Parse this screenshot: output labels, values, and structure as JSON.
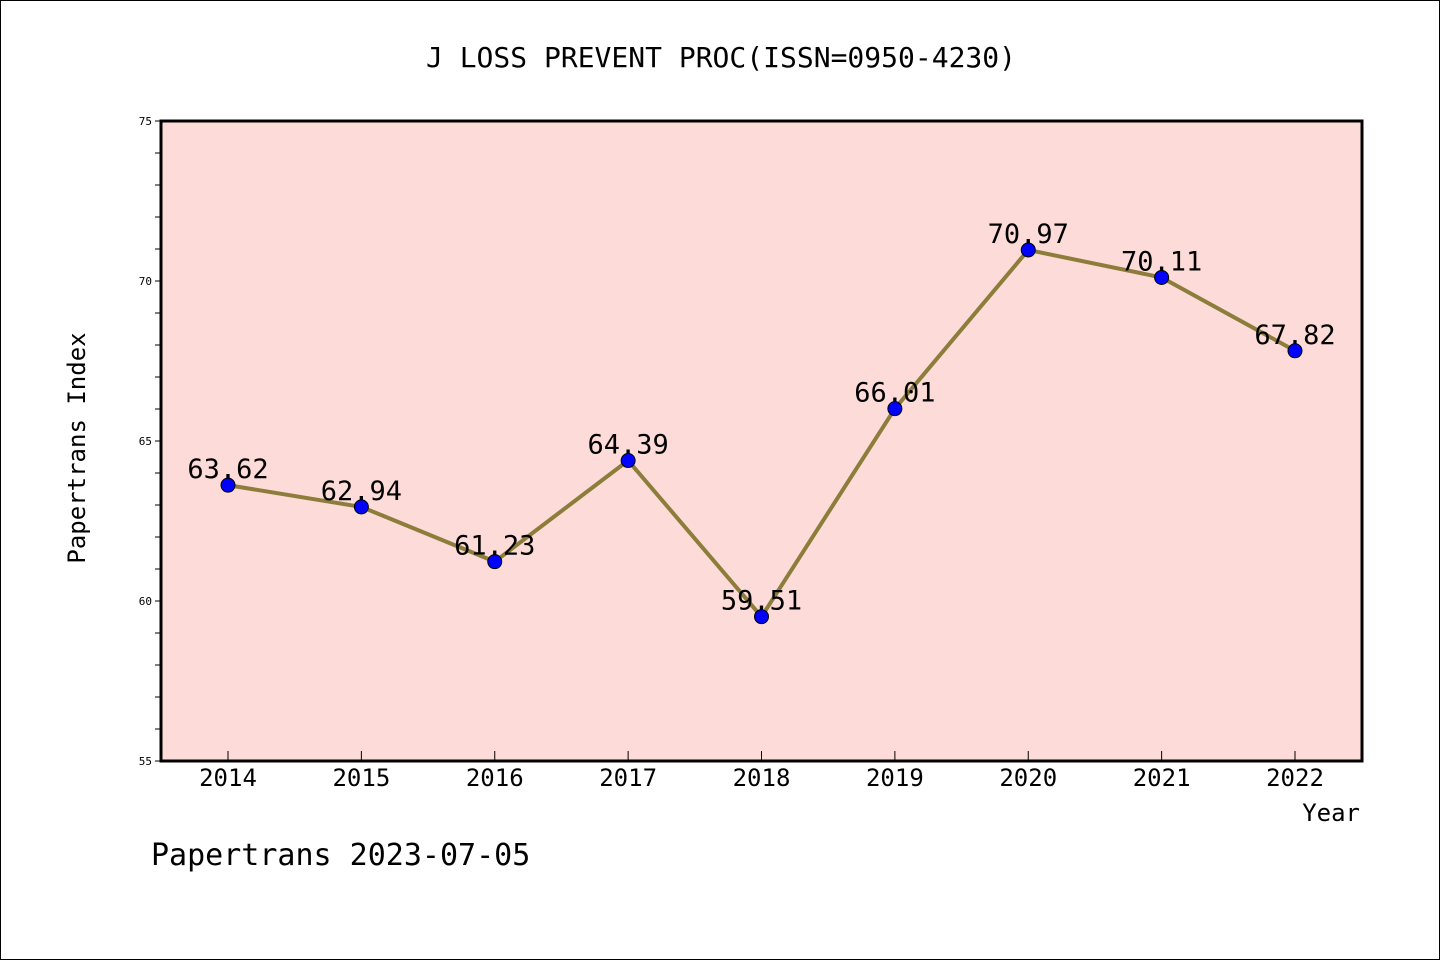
{
  "chart_data": {
    "type": "line",
    "title": "J LOSS PREVENT PROC(ISSN=0950-4230)",
    "xlabel": "Year",
    "ylabel": "Papertrans Index",
    "categories": [
      "2014",
      "2015",
      "2016",
      "2017",
      "2018",
      "2019",
      "2020",
      "2021",
      "2022"
    ],
    "series": [
      {
        "values": [
          63.62,
          62.94,
          61.23,
          64.39,
          59.51,
          66.01,
          70.97,
          70.11,
          67.82
        ],
        "labels": [
          "63.62",
          "62.94",
          "61.23",
          "64.39",
          "59.51",
          "66.01",
          "70.97",
          "70.11",
          "67.82"
        ]
      }
    ],
    "ylim": [
      55,
      75
    ],
    "yticks": [
      "55",
      "60",
      "65",
      "70",
      "75"
    ],
    "grid": false,
    "legend": "none",
    "colors": {
      "plot_background": "#fddbd8",
      "line": "#8c7d3b",
      "marker": "#0000ff"
    }
  },
  "footer": {
    "text": "Papertrans 2023-07-05"
  }
}
